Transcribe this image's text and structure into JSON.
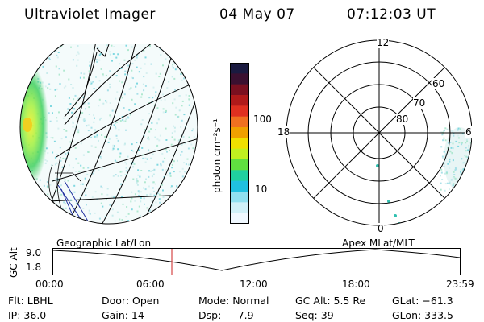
{
  "header": {
    "title": "Ultraviolet Imager",
    "date": "04 May 07",
    "time": "07:12:03 UT"
  },
  "colorbar": {
    "unit_label": "photon cm⁻²s⁻¹",
    "ticks": [
      "100",
      "10"
    ],
    "colors": [
      "#1a1a40",
      "#3a1030",
      "#7a1020",
      "#b01a1a",
      "#e03020",
      "#f07020",
      "#f0a000",
      "#f0e000",
      "#c0f020",
      "#60e040",
      "#20d0a0",
      "#20c0e0",
      "#90e0f0",
      "#d0f0f8",
      "#f0f8ff"
    ]
  },
  "polar": {
    "labels": {
      "top": "12",
      "left": "18",
      "right": "6",
      "bottom": "0"
    },
    "lat_labels": [
      "60",
      "70",
      "80"
    ]
  },
  "map_labels": {
    "left": "Geographic Lat/Lon",
    "right": "Apex  MLat/MLT"
  },
  "timeline": {
    "axis_label": "GC Alt",
    "y_ticks": [
      "9.0",
      "1.8"
    ],
    "x_ticks": [
      "00:00",
      "06:00",
      "12:00",
      "18:00",
      "23:59"
    ],
    "marker_color": "#cc2020"
  },
  "info": {
    "flt": "Flt: LBHL",
    "ip": "IP: 36.0",
    "door": "Door: Open",
    "gain": "Gain: 14",
    "mode": "Mode: Normal",
    "dsp": "Dsp:    -7.9",
    "gc_alt": "GC Alt: 5.5 Re",
    "seq": "Seq: 39",
    "glat": "GLat: −61.3",
    "glon": "GLon: 333.5"
  }
}
